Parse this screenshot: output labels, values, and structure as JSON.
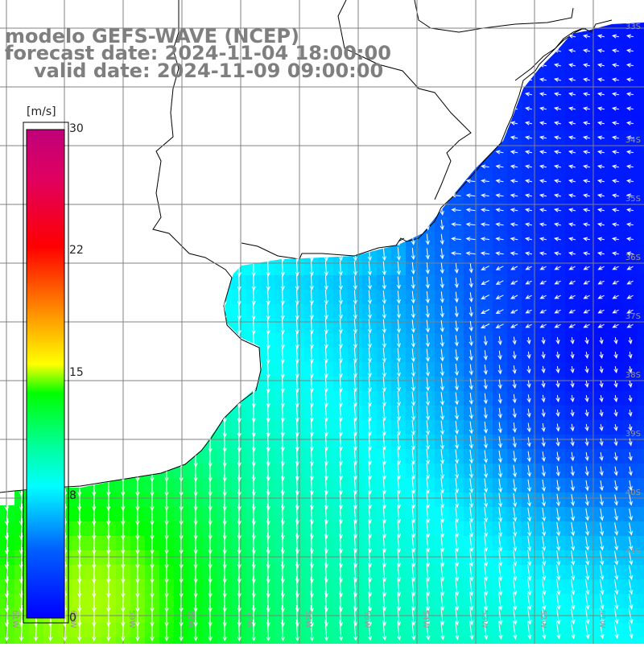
{
  "header": {
    "model": "modelo GEFS-WAVE (NCEP)",
    "forecast": "forecast date: 2024-11-04 18:00:00",
    "valid": "valid date: 2024-11-09 09:00:00"
  },
  "colorbar": {
    "unit": "[m/s]",
    "ticks": [
      {
        "label": "30",
        "value": 30
      },
      {
        "label": "22",
        "value": 22
      },
      {
        "label": "15",
        "value": 15
      },
      {
        "label": "8",
        "value": 8
      },
      {
        "label": "0",
        "value": 0
      }
    ]
  },
  "grid": {
    "lat_labels": [
      "33S",
      "34S",
      "35S",
      "36S",
      "37S",
      "38S",
      "39S",
      "40S",
      "41S"
    ],
    "lon_labels": [
      "61W",
      "60W",
      "59W",
      "58W",
      "57W",
      "56W",
      "55W",
      "54W",
      "53W",
      "52W",
      "51W"
    ]
  },
  "colors": {
    "land": "#ffffff",
    "coast": "#000000",
    "grid": "#808080",
    "title": "#7f7f7f",
    "arrows": "#ffffff"
  }
}
